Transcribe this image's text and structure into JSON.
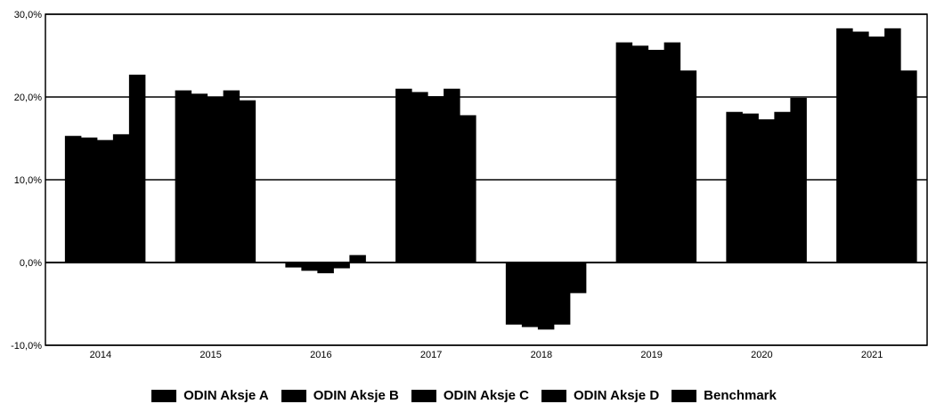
{
  "chart_data": {
    "type": "bar",
    "categories": [
      "2014",
      "2015",
      "2016",
      "2017",
      "2018",
      "2019",
      "2020",
      "2021"
    ],
    "series": [
      {
        "name": "ODIN Aksje A",
        "values": [
          15.3,
          20.8,
          -0.6,
          21.0,
          -7.5,
          26.6,
          18.2,
          28.3
        ]
      },
      {
        "name": "ODIN Aksje B",
        "values": [
          15.1,
          20.4,
          -1.0,
          20.6,
          -7.8,
          26.2,
          18.0,
          27.9
        ]
      },
      {
        "name": "ODIN Aksje C",
        "values": [
          14.8,
          20.0,
          -1.3,
          20.1,
          -8.1,
          25.7,
          17.3,
          27.3
        ]
      },
      {
        "name": "ODIN Aksje D",
        "values": [
          15.5,
          20.8,
          -0.7,
          21.0,
          -7.5,
          26.6,
          18.2,
          28.3
        ]
      },
      {
        "name": "Benchmark",
        "values": [
          22.7,
          19.6,
          0.9,
          17.8,
          -3.7,
          23.2,
          19.9,
          23.2
        ]
      }
    ],
    "yticks": [
      "30,0%",
      "20,0%",
      "10,0%",
      "0,0%",
      "-10,0%"
    ],
    "ytick_values": [
      30,
      20,
      10,
      0,
      -10
    ],
    "ylim": [
      -10,
      30
    ],
    "color": "#000000",
    "grid": "horizontal",
    "legend_position": "bottom"
  }
}
